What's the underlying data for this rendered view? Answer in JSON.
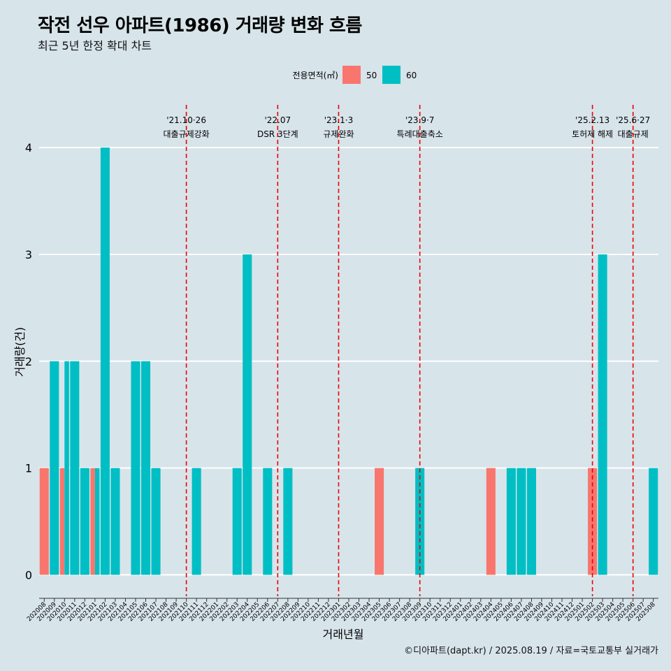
{
  "title": "작전 선우 아파트(1986) 거래량 변화 흐름",
  "subtitle": "최근 5년 한정 확대 차트",
  "caption": "©디아파트(dapt.kr) / 2025.08.19 / 자료=국토교통부 실거래가",
  "colors": {
    "s50": "#f8766d",
    "s60": "#00bfc4",
    "vline": "#ee0000",
    "grid": "#ffffff"
  },
  "chart_data": {
    "type": "bar",
    "title": "작전 선우 아파트(1986) 거래량 변화 흐름",
    "xlabel": "거래년월",
    "ylabel": "거래량(건)",
    "ylim": [
      -0.2,
      4.4
    ],
    "yticks": [
      0,
      1,
      2,
      3,
      4
    ],
    "legend": {
      "title": "전용면적(㎡)",
      "placement": "top",
      "entries": [
        "50",
        "60"
      ]
    },
    "categories": [
      "202008",
      "202009",
      "202010",
      "202011",
      "202012",
      "202101",
      "202102",
      "202103",
      "202104",
      "202105",
      "202106",
      "202107",
      "202108",
      "202109",
      "202110",
      "202111",
      "202112",
      "202201",
      "202202",
      "202203",
      "202204",
      "202205",
      "202206",
      "202207",
      "202208",
      "202209",
      "202210",
      "202211",
      "202212",
      "202301",
      "202302",
      "202303",
      "202304",
      "202305",
      "202306",
      "202307",
      "202308",
      "202309",
      "202310",
      "202311",
      "202312",
      "202401",
      "202402",
      "202403",
      "202404",
      "202405",
      "202406",
      "202407",
      "202408",
      "202409",
      "202410",
      "202411",
      "202412",
      "202501",
      "202502",
      "202503",
      "202504",
      "202505",
      "202506",
      "202507",
      "202508"
    ],
    "series": [
      {
        "name": "50",
        "values": {
          "202008": 1,
          "202010": 1,
          "202101": 1,
          "202305": 1,
          "202404": 1,
          "202502": 1
        }
      },
      {
        "name": "60",
        "values": {
          "202009": 2,
          "202010": 2,
          "202011": 2,
          "202012": 1,
          "202101": 1,
          "202102": 4,
          "202103": 1,
          "202105": 2,
          "202106": 2,
          "202107": 1,
          "202111": 1,
          "202203": 1,
          "202204": 3,
          "202206": 1,
          "202208": 1,
          "202309": 1,
          "202406": 1,
          "202407": 1,
          "202408": 1,
          "202503": 3,
          "202508": 1
        }
      }
    ],
    "annotations": [
      {
        "x": "202110",
        "date": "'21.10·26",
        "label": "대출규제강화"
      },
      {
        "x": "202207",
        "date": "'22.07",
        "label": "DSR 3단계"
      },
      {
        "x": "202301",
        "date": "'23.1·3",
        "label": "규제완화"
      },
      {
        "x": "202309",
        "date": "'23.9·7",
        "label": "특례대출축소"
      },
      {
        "x": "202502",
        "date": "'25.2.13",
        "label": "토허제 해제"
      },
      {
        "x": "202506",
        "date": "'25.6·27",
        "label": "대출규제"
      }
    ]
  }
}
